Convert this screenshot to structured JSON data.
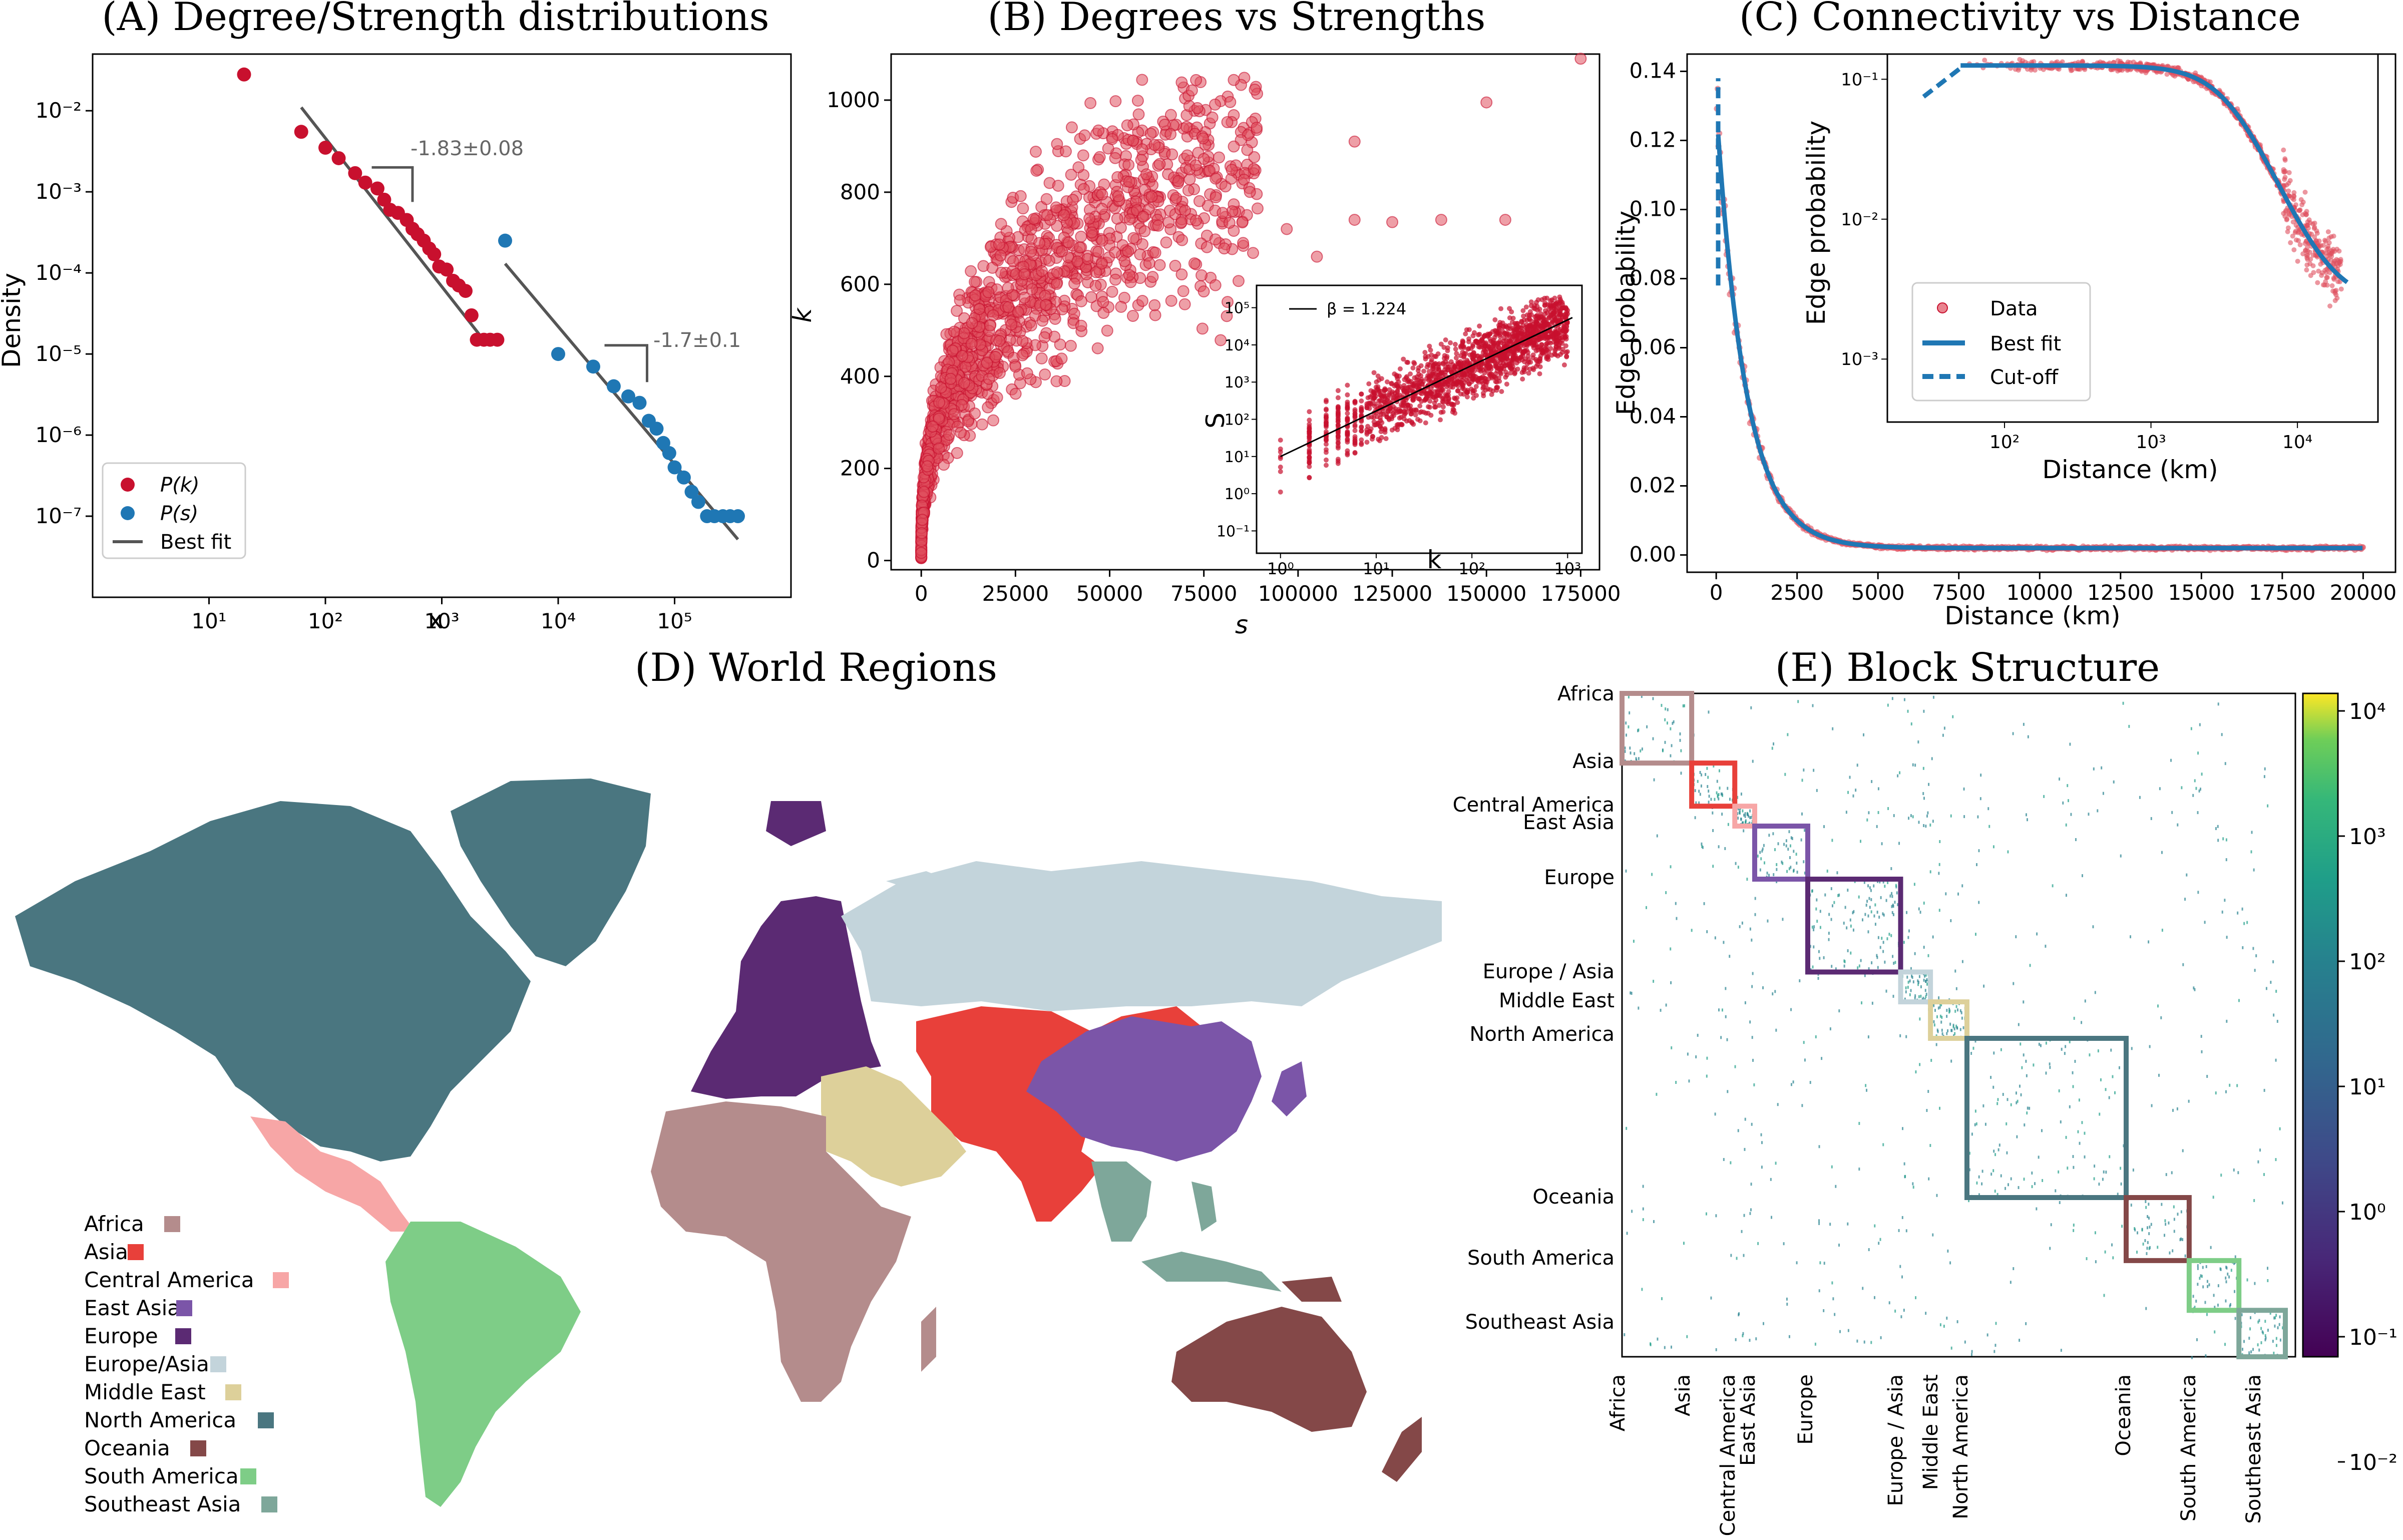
{
  "panels": {
    "A": {
      "title": "(A) Degree/Strength distributions",
      "xlabel": "x",
      "ylabel": "Density",
      "xticks": [
        "10¹",
        "10²",
        "10³",
        "10⁴",
        "10⁵"
      ],
      "yticks": [
        "10⁻²",
        "10⁻³",
        "10⁻⁴",
        "10⁻⁵",
        "10⁻⁶",
        "10⁻⁷"
      ],
      "legend": [
        "P(k)",
        "P(s)",
        "Best fit"
      ],
      "slope_k": "-1.83±0.08",
      "slope_s": "-1.7±0.1"
    },
    "B": {
      "title": "(B) Degrees vs Strengths",
      "xlabel": "s",
      "ylabel": "k",
      "xticks": [
        "0",
        "25000",
        "50000",
        "75000",
        "100000",
        "125000",
        "150000",
        "175000"
      ],
      "yticks": [
        "0",
        "200",
        "400",
        "600",
        "800",
        "1000"
      ],
      "inset": {
        "xlabel": "k",
        "ylabel": "S",
        "legend": "β = 1.224",
        "xticks": [
          "10⁰",
          "10¹",
          "10²",
          "10³"
        ],
        "yticks": [
          "10⁻¹",
          "10⁰",
          "10¹",
          "10²",
          "10³",
          "10⁴",
          "10⁵"
        ]
      }
    },
    "C": {
      "title": "(C) Connectivity vs Distance",
      "xlabel": "Distance (km)",
      "ylabel": "Edge probability",
      "xticks": [
        "0",
        "2500",
        "5000",
        "7500",
        "10000",
        "12500",
        "15000",
        "17500",
        "20000"
      ],
      "yticks": [
        "0.00",
        "0.02",
        "0.04",
        "0.06",
        "0.08",
        "0.10",
        "0.12",
        "0.14"
      ],
      "legend": [
        "Data",
        "Best fit",
        "Cut-off"
      ],
      "inset": {
        "xlabel": "Distance (km)",
        "ylabel": "Edge probability",
        "xticks": [
          "10²",
          "10³",
          "10⁴"
        ],
        "yticks": [
          "10⁻¹",
          "10⁻²",
          "10⁻³"
        ]
      }
    },
    "D": {
      "title": "(D) World Regions",
      "legend": [
        "Africa",
        "Asia",
        "Central America",
        "East Asia",
        "Europe",
        "Europe/Asia",
        "Middle East",
        "North America",
        "Oceania",
        "South America",
        "Southeast Asia"
      ]
    },
    "E": {
      "title": "(E) Block Structure",
      "rows": [
        "Africa",
        "Asia",
        "Central America",
        "East Asia",
        "Europe",
        "Europe / Asia",
        "Middle East",
        "North America",
        "Oceania",
        "South America",
        "Southeast Asia"
      ],
      "cols": [
        "Africa",
        "Asia",
        "Central America",
        "East Asia",
        "Europe",
        "Europe / Asia",
        "Middle East",
        "North America",
        "Oceania",
        "South America",
        "Southeast Asia"
      ],
      "colorbar": [
        "10⁴",
        "10³",
        "10²",
        "10¹",
        "10⁰",
        "10⁻¹",
        "10⁻²"
      ]
    }
  },
  "colors": {
    "red": "#c8102e",
    "blue": "#1f77b4",
    "grey": "#555555",
    "regions": [
      "#b48c8c",
      "#e8403a",
      "#f7a6a6",
      "#7b55a8",
      "#5b2a73",
      "#c3d4db",
      "#ddd09a",
      "#4a7680",
      "#844848",
      "#7ecd87",
      "#7ea79a"
    ]
  },
  "chart_data": [
    {
      "type": "scatter",
      "panel": "A",
      "xscale": "log",
      "yscale": "log",
      "xlim": [
        1,
        1000000
      ],
      "ylim": [
        1e-08,
        0.05
      ],
      "series": [
        {
          "name": "P(k)",
          "points": [
            [
              20,
              0.028
            ],
            [
              62,
              0.0055
            ],
            [
              100,
              0.0035
            ],
            [
              130,
              0.0026
            ],
            [
              180,
              0.0017
            ],
            [
              220,
              0.0013
            ],
            [
              280,
              0.0011
            ],
            [
              320,
              0.0008
            ],
            [
              360,
              0.0006
            ],
            [
              420,
              0.00055
            ],
            [
              500,
              0.00045
            ],
            [
              560,
              0.00035
            ],
            [
              620,
              0.0003
            ],
            [
              700,
              0.00025
            ],
            [
              780,
              0.0002
            ],
            [
              860,
              0.00017
            ],
            [
              950,
              0.00012
            ],
            [
              1100,
              0.00011
            ],
            [
              1250,
              8e-05
            ],
            [
              1400,
              7e-05
            ],
            [
              1600,
              6e-05
            ],
            [
              1800,
              3e-05
            ],
            [
              2000,
              1.5e-05
            ],
            [
              2300,
              1.5e-05
            ],
            [
              2600,
              1.5e-05
            ],
            [
              3000,
              1.5e-05
            ]
          ]
        },
        {
          "name": "P(s)",
          "points": [
            [
              3500,
              0.00025
            ],
            [
              10000,
              1e-05
            ],
            [
              20000,
              7e-06
            ],
            [
              30000,
              4e-06
            ],
            [
              40000,
              3e-06
            ],
            [
              50000,
              2.5e-06
            ],
            [
              60000,
              1.5e-06
            ],
            [
              70000,
              1.2e-06
            ],
            [
              80000,
              8e-07
            ],
            [
              90000,
              6e-07
            ],
            [
              100000,
              4e-07
            ],
            [
              120000,
              3e-07
            ],
            [
              140000,
              2e-07
            ],
            [
              160000,
              1.5e-07
            ],
            [
              190000,
              1e-07
            ],
            [
              220000,
              1e-07
            ],
            [
              260000,
              1e-07
            ],
            [
              300000,
              1e-07
            ],
            [
              350000,
              1e-07
            ]
          ]
        }
      ],
      "fits": [
        {
          "name": "k-fit",
          "slope": -1.83,
          "x": [
            62,
            2200
          ],
          "y0": 0.011
        },
        {
          "name": "s-fit",
          "slope": -1.7,
          "x": [
            3500,
            350000
          ],
          "y0": 0.00013
        }
      ]
    },
    {
      "type": "scatter",
      "panel": "B",
      "xlim": [
        -8000,
        180000
      ],
      "ylim": [
        -20,
        1100
      ],
      "seed": 7,
      "n": 1400,
      "outliers": [
        [
          175000,
          1090
        ],
        [
          150000,
          995
        ],
        [
          115000,
          910
        ],
        [
          89000,
          940
        ],
        [
          43000,
          880
        ],
        [
          48000,
          795
        ],
        [
          70000,
          760
        ],
        [
          78000,
          760
        ],
        [
          80000,
          755
        ],
        [
          138000,
          740
        ],
        [
          155000,
          740
        ],
        [
          115000,
          740
        ],
        [
          125000,
          735
        ],
        [
          97000,
          720
        ],
        [
          105000,
          660
        ]
      ]
    },
    {
      "type": "scatter",
      "panel": "B-inset",
      "xscale": "log",
      "yscale": "log",
      "beta": 1.224
    },
    {
      "type": "line",
      "panel": "C",
      "xlim": [
        -900,
        21000
      ],
      "ylim": [
        -0.005,
        0.145
      ],
      "cutoff_x": 60,
      "cutoff_range": [
        0.078,
        0.138
      ]
    },
    {
      "type": "heatmap",
      "panel": "E",
      "blocks": [
        [
          0,
          0.105
        ],
        [
          0.105,
          0.17
        ],
        [
          0.17,
          0.2
        ],
        [
          0.2,
          0.28
        ],
        [
          0.28,
          0.42
        ],
        [
          0.42,
          0.465
        ],
        [
          0.465,
          0.52
        ],
        [
          0.52,
          0.76
        ],
        [
          0.76,
          0.855
        ],
        [
          0.855,
          0.93
        ],
        [
          0.93,
          1.0
        ]
      ]
    }
  ]
}
